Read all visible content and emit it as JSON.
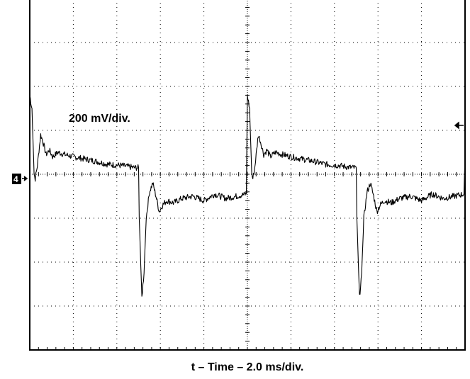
{
  "chart_data": {
    "type": "line",
    "title": "",
    "xlabel": "t – Time – 2.0 ms/div.",
    "ylabel": "",
    "scale_label": "200 mV/div.",
    "channel_marker": "4",
    "xlim": [
      0,
      20
    ],
    "ylim": [
      -800,
      800
    ],
    "grid": true,
    "legend": "none",
    "trace_color": "#000000",
    "grid_color": "#000000",
    "series": [
      {
        "values_unit": "mV",
        "x": [
          0.0,
          0.1,
          0.2,
          0.25,
          0.35,
          0.5,
          0.6,
          0.75,
          0.9,
          1.05,
          1.3,
          1.6,
          2.0,
          2.5,
          3.0,
          3.6,
          4.2,
          4.8,
          5.0,
          5.03,
          5.15,
          5.25,
          5.35,
          5.5,
          5.65,
          5.8,
          5.95,
          6.1,
          6.3,
          6.6,
          7.0,
          7.5,
          8.0,
          8.5,
          9.0,
          9.5,
          9.95,
          10.0,
          10.1,
          10.2,
          10.25,
          10.35,
          10.5,
          10.6,
          10.75,
          10.9,
          11.05,
          11.3,
          11.6,
          12.0,
          12.5,
          13.0,
          13.6,
          14.2,
          14.8,
          15.0,
          15.03,
          15.15,
          15.25,
          15.35,
          15.5,
          15.65,
          15.8,
          15.95,
          16.1,
          16.3,
          16.6,
          17.0,
          17.5,
          18.0,
          18.5,
          19.0,
          19.5,
          19.95,
          20.0
        ],
        "values": [
          360,
          300,
          0,
          -20,
          40,
          180,
          150,
          90,
          110,
          80,
          100,
          90,
          80,
          70,
          60,
          45,
          40,
          30,
          30,
          -200,
          -560,
          -450,
          -200,
          -80,
          -40,
          -100,
          -170,
          -140,
          -120,
          -130,
          -110,
          -100,
          -120,
          -90,
          -110,
          -100,
          -90,
          360,
          300,
          0,
          -20,
          40,
          180,
          150,
          90,
          110,
          80,
          100,
          90,
          80,
          70,
          60,
          45,
          40,
          30,
          30,
          -200,
          -560,
          -450,
          -200,
          -80,
          -40,
          -100,
          -170,
          -140,
          -120,
          -130,
          -110,
          -100,
          -120,
          -90,
          -110,
          -100,
          -90,
          80
        ]
      }
    ]
  }
}
